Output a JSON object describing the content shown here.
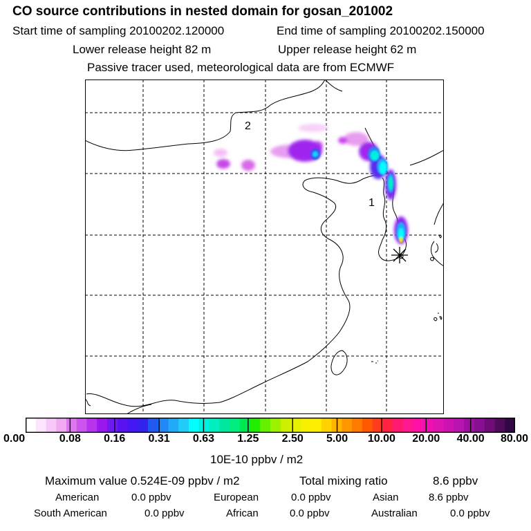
{
  "header": {
    "title": "CO  source contributions in nested domain for gosan_201002",
    "start_label": "Start time of sampling 20100202.120000",
    "end_label": "End time of sampling 20100202.150000",
    "lower_label": "Lower release height   82 m",
    "upper_label": "Upper release height   62 m",
    "tracer_line": "Passive tracer used, meteorological data are from ECMWF"
  },
  "map": {
    "labels": {
      "one": "1",
      "two": "2"
    },
    "receptor_marker": "asterisk-icon"
  },
  "colorbar": {
    "tick_labels": [
      "0.00",
      "0.08",
      "0.16",
      "0.31",
      "0.63",
      "1.25",
      "2.50",
      "5.00",
      "10.00",
      "20.00",
      "40.00",
      "80.00"
    ],
    "unit": "10E-10 ppbv / m2",
    "colors": [
      "#ffffff",
      "#fde6fd",
      "#f8c9f8",
      "#f0aaf0",
      "#dd77ee",
      "#cc55ee",
      "#b833ee",
      "#9a18ee",
      "#6e1af0",
      "#5a12f0",
      "#4418f0",
      "#3322ee",
      "#1e5af0",
      "#2288f8",
      "#22aaf8",
      "#22ccf8",
      "#00ffff",
      "#00f0e0",
      "#00eec0",
      "#00e8a0",
      "#00ee80",
      "#00e850",
      "#22ee00",
      "#66f000",
      "#9df000",
      "#ccf000",
      "#e6f000",
      "#f8f000",
      "#ffee00",
      "#ffd200",
      "#ffb400",
      "#ff9800",
      "#ff7a00",
      "#ff5a00",
      "#ff3c1e",
      "#ff2242",
      "#ff1a70",
      "#ff1890",
      "#ff10a8",
      "#ee10b0",
      "#dd14b0",
      "#cc12b0",
      "#b814b0",
      "#a010a0",
      "#881090",
      "#700c78",
      "#500a5a",
      "#300844"
    ]
  },
  "stats": {
    "max_line": "Maximum value  0.524E-09 ppbv / m2",
    "total_label": "Total mixing ratio",
    "total_value": "8.6 ppbv",
    "american_label": "American",
    "american_value": "0.0 ppbv",
    "european_label": "European",
    "european_value": "0.0 ppbv",
    "asian_label": "Asian",
    "asian_value": "8.6 ppbv",
    "south_american_label": "South American",
    "south_american_value": "0.0 ppbv",
    "african_label": "African",
    "african_value": "0.0 ppbv",
    "australian_label": "Australian",
    "australian_value": "0.0 ppbv"
  }
}
